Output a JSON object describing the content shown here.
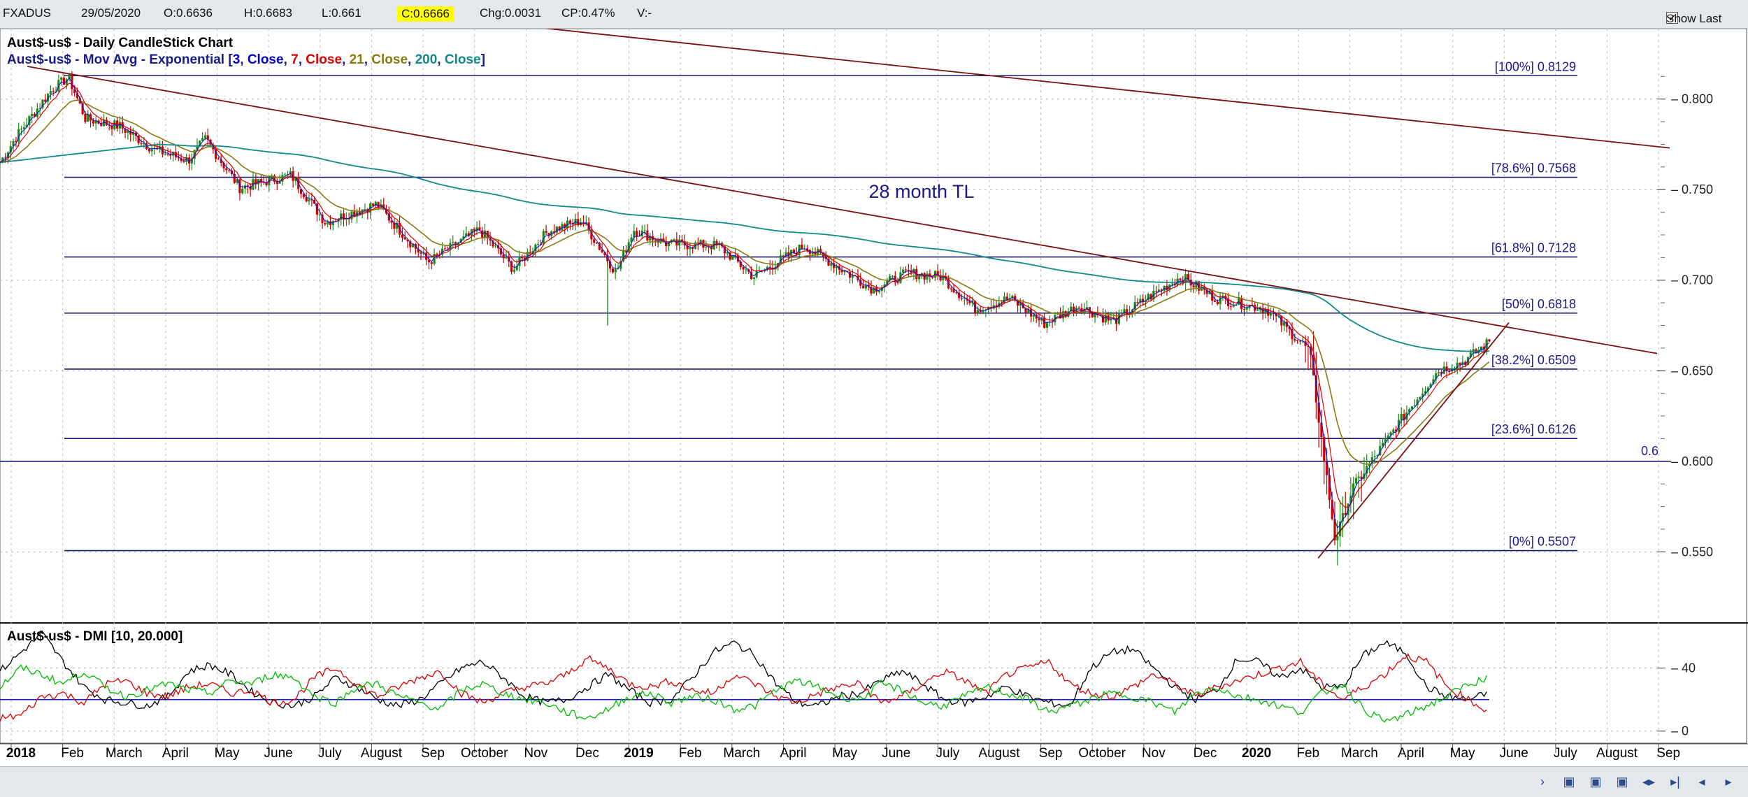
{
  "header": {
    "symbol": "FXADUS",
    "date": "29/05/2020",
    "open": "O:0.6636",
    "high": "H:0.6683",
    "low": "L:0.661",
    "close": "C:0.6666",
    "change": "Chg:0.0031",
    "change_pct": "CP:0.47%",
    "volume": "V:-",
    "show_last_label": "Show Last",
    "show_last_checked": true
  },
  "chart_data": {
    "type": "candlestick",
    "title": "Aust$-us$ - Daily CandleStick Chart",
    "ma_title_prefix": "Aust$-us$ - Mov Avg - Exponential [",
    "ma_params": [
      {
        "text": "3",
        "color": "#0000cc"
      },
      {
        "text": "Close",
        "color": "#0000cc"
      },
      {
        "text": "7",
        "color": "#dd0000"
      },
      {
        "text": "Close",
        "color": "#dd0000"
      },
      {
        "text": "21",
        "color": "#8a7a10"
      },
      {
        "text": "Close",
        "color": "#8a7a10"
      },
      {
        "text": "200",
        "color": "#108a8a"
      },
      {
        "text": "Close",
        "color": "#108a8a"
      }
    ],
    "ylim": [
      0.515,
      0.835
    ],
    "y_ticks": [
      "0.800",
      "0.750",
      "0.700",
      "0.650",
      "0.600",
      "0.550"
    ],
    "x_labels": [
      {
        "label": "2018",
        "bold": true
      },
      {
        "label": "Feb"
      },
      {
        "label": "March"
      },
      {
        "label": "April"
      },
      {
        "label": "May"
      },
      {
        "label": "June"
      },
      {
        "label": "July"
      },
      {
        "label": "August"
      },
      {
        "label": "Sep"
      },
      {
        "label": "October"
      },
      {
        "label": "Nov"
      },
      {
        "label": "Dec"
      },
      {
        "label": "2019",
        "bold": true
      },
      {
        "label": "Feb"
      },
      {
        "label": "March"
      },
      {
        "label": "April"
      },
      {
        "label": "May"
      },
      {
        "label": "June"
      },
      {
        "label": "July"
      },
      {
        "label": "August"
      },
      {
        "label": "Sep"
      },
      {
        "label": "October"
      },
      {
        "label": "Nov"
      },
      {
        "label": "Dec"
      },
      {
        "label": "2020",
        "bold": true
      },
      {
        "label": "Feb"
      },
      {
        "label": "March"
      },
      {
        "label": "April"
      },
      {
        "label": "May"
      },
      {
        "label": "June"
      },
      {
        "label": "July"
      },
      {
        "label": "August"
      },
      {
        "label": "Sep"
      }
    ],
    "fib_levels": [
      {
        "label": "[100%] 0.8129",
        "value": 0.8129
      },
      {
        "label": "[78.6%] 0.7568",
        "value": 0.7568
      },
      {
        "label": "[61.8%] 0.7128",
        "value": 0.7128
      },
      {
        "label": "[50%] 0.6818",
        "value": 0.6818
      },
      {
        "label": "[38.2%] 0.6509",
        "value": 0.6509
      },
      {
        "label": "[23.6%] 0.6126",
        "value": 0.6126
      },
      {
        "label": "[0%] 0.5507",
        "value": 0.5507
      }
    ],
    "level_06": {
      "label": "0.6",
      "value": 0.6
    },
    "annotation": "28 month TL",
    "ohlc_anchors": [
      [
        0,
        0.765
      ],
      [
        0.01,
        0.78
      ],
      [
        0.03,
        0.805
      ],
      [
        0.04,
        0.812
      ],
      [
        0.05,
        0.789
      ],
      [
        0.07,
        0.785
      ],
      [
        0.09,
        0.772
      ],
      [
        0.11,
        0.766
      ],
      [
        0.12,
        0.778
      ],
      [
        0.14,
        0.751
      ],
      [
        0.17,
        0.758
      ],
      [
        0.19,
        0.732
      ],
      [
        0.22,
        0.742
      ],
      [
        0.25,
        0.71
      ],
      [
        0.28,
        0.728
      ],
      [
        0.3,
        0.706
      ],
      [
        0.32,
        0.727
      ],
      [
        0.34,
        0.733
      ],
      [
        0.36,
        0.704
      ],
      [
        0.37,
        0.728
      ],
      [
        0.39,
        0.72
      ],
      [
        0.42,
        0.719
      ],
      [
        0.44,
        0.702
      ],
      [
        0.47,
        0.719
      ],
      [
        0.51,
        0.695
      ],
      [
        0.53,
        0.704
      ],
      [
        0.55,
        0.702
      ],
      [
        0.57,
        0.684
      ],
      [
        0.59,
        0.69
      ],
      [
        0.61,
        0.676
      ],
      [
        0.63,
        0.686
      ],
      [
        0.65,
        0.677
      ],
      [
        0.67,
        0.69
      ],
      [
        0.69,
        0.702
      ],
      [
        0.71,
        0.69
      ],
      [
        0.74,
        0.684
      ],
      [
        0.765,
        0.661
      ],
      [
        0.78,
        0.556
      ],
      [
        0.79,
        0.585
      ],
      [
        0.82,
        0.625
      ],
      [
        0.84,
        0.65
      ],
      [
        0.855,
        0.655
      ],
      [
        0.87,
        0.666
      ]
    ],
    "dmi": {
      "title": "Aust$-us$ - DMI [10, 20.000]",
      "y_ticks": [
        "40",
        "0"
      ],
      "ylim": [
        -5,
        62
      ],
      "threshold": 20,
      "series": [
        {
          "color": "#000000",
          "values": [
            38,
            50,
            62,
            44,
            28,
            20,
            18,
            16,
            22,
            38,
            42,
            36,
            25,
            18,
            16,
            22,
            34,
            28,
            20,
            16,
            20,
            30,
            40,
            44,
            34,
            22,
            18,
            20,
            28,
            36,
            26,
            18,
            20,
            34,
            50,
            56,
            48,
            30,
            18,
            16,
            22,
            24,
            32,
            38,
            30,
            20,
            18,
            22,
            28,
            22,
            18,
            16,
            40,
            50,
            52,
            40,
            28,
            20,
            26,
            46,
            44,
            34,
            40,
            28,
            28,
            48,
            56,
            50,
            28,
            22,
            20,
            24
          ]
        },
        {
          "color": "#dd0000",
          "values": [
            8,
            10,
            22,
            24,
            18,
            30,
            32,
            24,
            22,
            28,
            30,
            24,
            26,
            18,
            20,
            34,
            40,
            30,
            22,
            28,
            34,
            38,
            24,
            18,
            24,
            28,
            30,
            36,
            46,
            40,
            30,
            28,
            32,
            26,
            24,
            36,
            30,
            22,
            18,
            24,
            28,
            30,
            18,
            22,
            30,
            38,
            32,
            24,
            36,
            40,
            44,
            30,
            24,
            22,
            28,
            36,
            30,
            22,
            28,
            32,
            36,
            40,
            44,
            30,
            20,
            28,
            36,
            48,
            44,
            28,
            20,
            12
          ]
        },
        {
          "color": "#00bb00",
          "values": [
            28,
            40,
            36,
            30,
            38,
            28,
            22,
            26,
            30,
            26,
            24,
            32,
            30,
            36,
            34,
            22,
            18,
            28,
            30,
            22,
            18,
            14,
            26,
            30,
            24,
            20,
            18,
            12,
            8,
            14,
            22,
            24,
            18,
            22,
            20,
            14,
            16,
            26,
            32,
            28,
            22,
            20,
            30,
            26,
            18,
            16,
            22,
            28,
            24,
            20,
            12,
            16,
            20,
            24,
            22,
            18,
            12,
            24,
            28,
            22,
            20,
            16,
            12,
            24,
            30,
            14,
            6,
            10,
            16,
            22,
            30,
            34
          ]
        }
      ]
    },
    "tl_label": "",
    "colors": {
      "candle_up": "#1a8a1a",
      "candle_down": "#cc0000",
      "ema3": "#1010cc",
      "ema7": "#dd0000",
      "ema21": "#8a7a10",
      "ema200": "#108a8a",
      "trendline": "#7a1010",
      "fib": "#1a1a6e",
      "dmi_threshold": "#2020aa"
    }
  }
}
